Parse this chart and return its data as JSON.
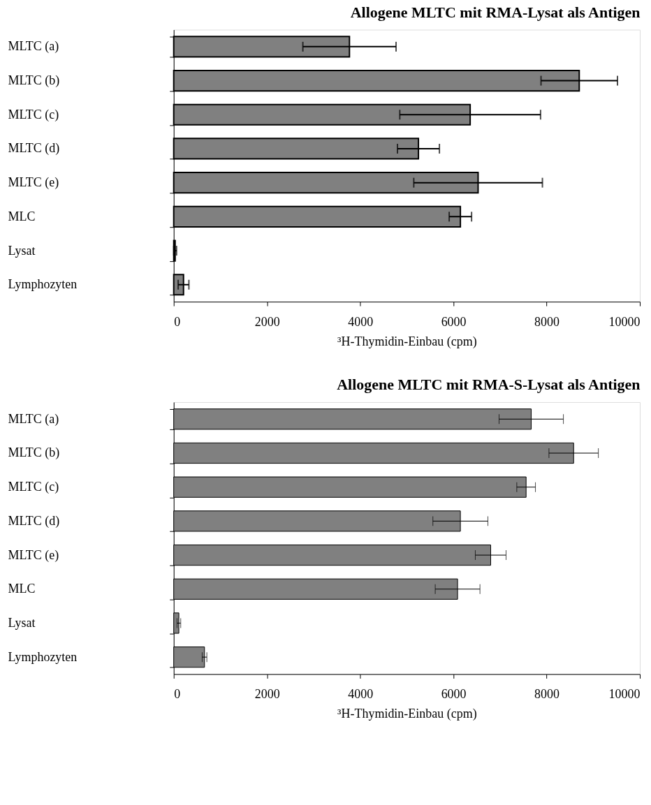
{
  "chart_data": [
    {
      "type": "bar",
      "orientation": "horizontal",
      "title": "Allogene MLTC mit RMA-Lysat als Antigen",
      "xlabel": "³H-Thymidin-Einbau (cpm)",
      "categories": [
        "MLTC (a)",
        "MLTC (b)",
        "MLTC (c)",
        "MLTC (d)",
        "MLTC (e)",
        "MLC",
        "Lysat",
        "Lymphozyten"
      ],
      "series": [
        {
          "color": "#808080",
          "values": [
            3770,
            8700,
            6360,
            5250,
            6530,
            6150,
            30,
            210
          ],
          "errors": [
            1000,
            820,
            1510,
            450,
            1380,
            240,
            30,
            115
          ]
        }
      ],
      "xlim": [
        0,
        10000
      ],
      "xticks": [
        0,
        2000,
        4000,
        6000,
        8000,
        10000
      ],
      "grid": false
    },
    {
      "type": "bar",
      "orientation": "horizontal",
      "title": "Allogene MLTC mit RMA-S-Lysat als Antigen",
      "xlabel": "³H-Thymidin-Einbau (cpm)",
      "categories": [
        "MLTC (a)",
        "MLTC (b)",
        "MLTC (c)",
        "MLTC (d)",
        "MLTC (e)",
        "MLC",
        "Lysat",
        "Lymphozyten"
      ],
      "series": [
        {
          "color": "#808080",
          "values": [
            7670,
            8580,
            7560,
            6150,
            6800,
            6090,
            110,
            660
          ],
          "errors": [
            690,
            530,
            200,
            590,
            330,
            480,
            40,
            50
          ]
        }
      ],
      "xlim": [
        0,
        10000
      ],
      "xticks": [
        0,
        2000,
        4000,
        6000,
        8000,
        10000
      ],
      "grid": false
    }
  ]
}
